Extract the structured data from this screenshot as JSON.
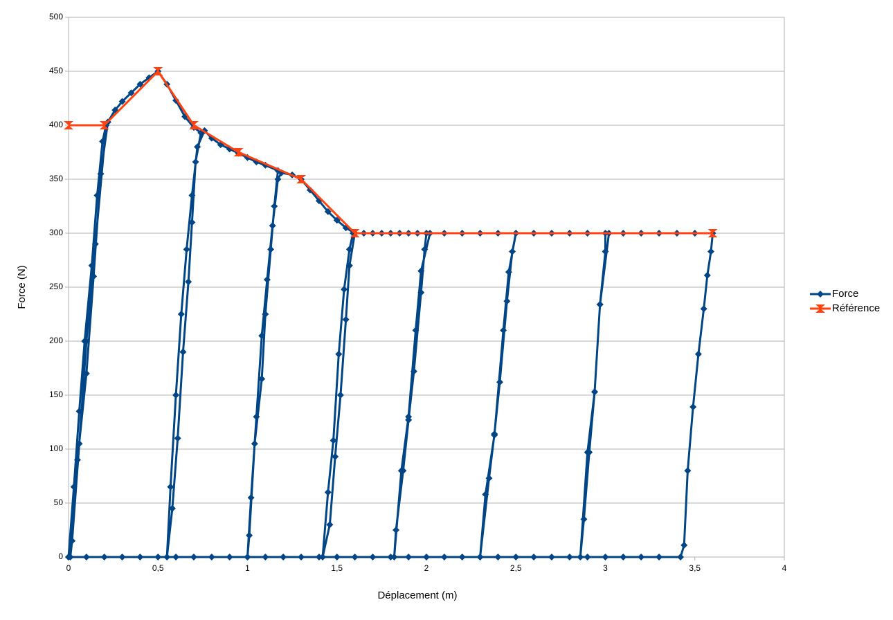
{
  "chart_data": {
    "type": "line",
    "xlabel": "Déplacement (m)",
    "ylabel": "Force (N)",
    "xlim": [
      0,
      4
    ],
    "ylim": [
      0,
      500
    ],
    "xticks": [
      0,
      {
        "value": 0.5,
        "label": "0,5"
      },
      1,
      {
        "value": 1.5,
        "label": "1,5"
      },
      2,
      {
        "value": 2.5,
        "label": "2,5"
      },
      3,
      {
        "value": 3.5,
        "label": "3,5"
      },
      4
    ],
    "yticks": [
      0,
      50,
      100,
      150,
      200,
      250,
      300,
      350,
      400,
      450,
      500
    ],
    "grid": true,
    "legend": "right",
    "series": [
      {
        "name": "Force",
        "color": "#004586",
        "marker": "diamond",
        "x": [
          0,
          0.03,
          0.06,
          0.09,
          0.13,
          0.16,
          0.19,
          0.21,
          0.15,
          0.1,
          0.06,
          0.02,
          0.01,
          0.05,
          0.1,
          0.14,
          0.18,
          0.22,
          0.26,
          0.3,
          0.35,
          0.4,
          0.45,
          0.5,
          0.55,
          0.6,
          0.65,
          0.7,
          0.74,
          0.71,
          0.69,
          0.67,
          0.64,
          0.61,
          0.58,
          0.55,
          0.57,
          0.6,
          0.63,
          0.66,
          0.69,
          0.72,
          0.76,
          0.8,
          0.85,
          0.9,
          0.95,
          1,
          1.05,
          1.1,
          1.17,
          1.15,
          1.13,
          1.1,
          1.08,
          1.04,
          1.01,
          1,
          1.02,
          1.05,
          1.08,
          1.11,
          1.14,
          1.17,
          1.19,
          1.25,
          1.3,
          1.35,
          1.4,
          1.45,
          1.5,
          1.55,
          1.6,
          1.57,
          1.55,
          1.52,
          1.49,
          1.46,
          1.42,
          1.45,
          1.48,
          1.51,
          1.54,
          1.57,
          1.59,
          1.65,
          1.7,
          1.75,
          1.8,
          1.85,
          1.9,
          1.95,
          2,
          1.99,
          1.97,
          1.93,
          1.9,
          1.87,
          1.83,
          1.82,
          1.86,
          1.9,
          1.94,
          1.97,
          2.02,
          2.1,
          2.2,
          2.3,
          2.4,
          2.5,
          2.48,
          2.45,
          2.41,
          2.38,
          2.35,
          2.3,
          2.33,
          2.38,
          2.43,
          2.46,
          2.5,
          2.6,
          2.7,
          2.8,
          2.9,
          3,
          3,
          2.97,
          2.94,
          2.91,
          2.88,
          2.86,
          2.9,
          2.94,
          2.97,
          3.02,
          3.1,
          3.2,
          3.3,
          3.4,
          3.5,
          3.6,
          3.59,
          3.57,
          3.55,
          3.52,
          3.49,
          3.46,
          3.44,
          3.42,
          3.3,
          3.2,
          3.1,
          3,
          2.9,
          2.8,
          2.7,
          2.6,
          2.5,
          2.4,
          2.3,
          2.2,
          2.1,
          2,
          1.9,
          1.8,
          1.7,
          1.6,
          1.5,
          1.4,
          1.3,
          1.2,
          1.1,
          1,
          0.9,
          0.8,
          0.7,
          0.6,
          0.5,
          0.4,
          0.3,
          0.2,
          0.1,
          0
        ],
        "values": [
          0,
          65,
          135,
          200,
          270,
          335,
          385,
          400,
          290,
          200,
          105,
          15,
          0,
          90,
          170,
          260,
          355,
          403,
          414,
          422,
          430,
          438,
          444,
          450,
          438,
          423,
          408,
          398,
          393,
          366,
          310,
          255,
          190,
          110,
          45,
          0,
          65,
          150,
          225,
          285,
          335,
          380,
          395,
          388,
          382,
          378,
          374,
          370,
          366,
          363,
          358,
          325,
          285,
          225,
          165,
          105,
          20,
          0,
          55,
          130,
          205,
          257,
          307,
          350,
          356,
          354,
          350,
          340,
          330,
          320,
          312,
          305,
          300,
          270,
          220,
          150,
          93,
          30,
          0,
          60,
          108,
          188,
          248,
          285,
          300,
          300,
          300,
          300,
          300,
          300,
          300,
          300,
          300,
          285,
          245,
          172,
          127,
          80,
          25,
          0,
          80,
          130,
          210,
          265,
          300,
          300,
          300,
          300,
          300,
          300,
          283,
          237,
          162,
          114,
          73,
          0,
          58,
          113,
          210,
          264,
          300,
          300,
          300,
          300,
          300,
          300,
          283,
          234,
          153,
          97,
          35,
          0,
          97,
          153,
          234,
          300,
          300,
          300,
          300,
          300,
          300,
          300,
          283,
          261,
          230,
          188,
          139,
          80,
          11,
          0,
          0,
          0,
          0,
          0,
          0,
          0,
          0,
          0,
          0,
          0,
          0,
          0,
          0,
          0,
          0,
          0,
          0,
          0,
          0,
          0,
          0,
          0,
          0,
          0,
          0,
          0,
          0,
          0,
          0,
          0,
          0,
          0,
          0,
          0
        ]
      },
      {
        "name": "Référence",
        "color": "#ff420e",
        "marker": "hourglass",
        "x": [
          0,
          0.2,
          0.5,
          0.7,
          0.95,
          1.3,
          1.6,
          3.6
        ],
        "values": [
          400,
          400,
          450,
          400,
          375,
          350,
          300,
          300
        ]
      }
    ]
  }
}
